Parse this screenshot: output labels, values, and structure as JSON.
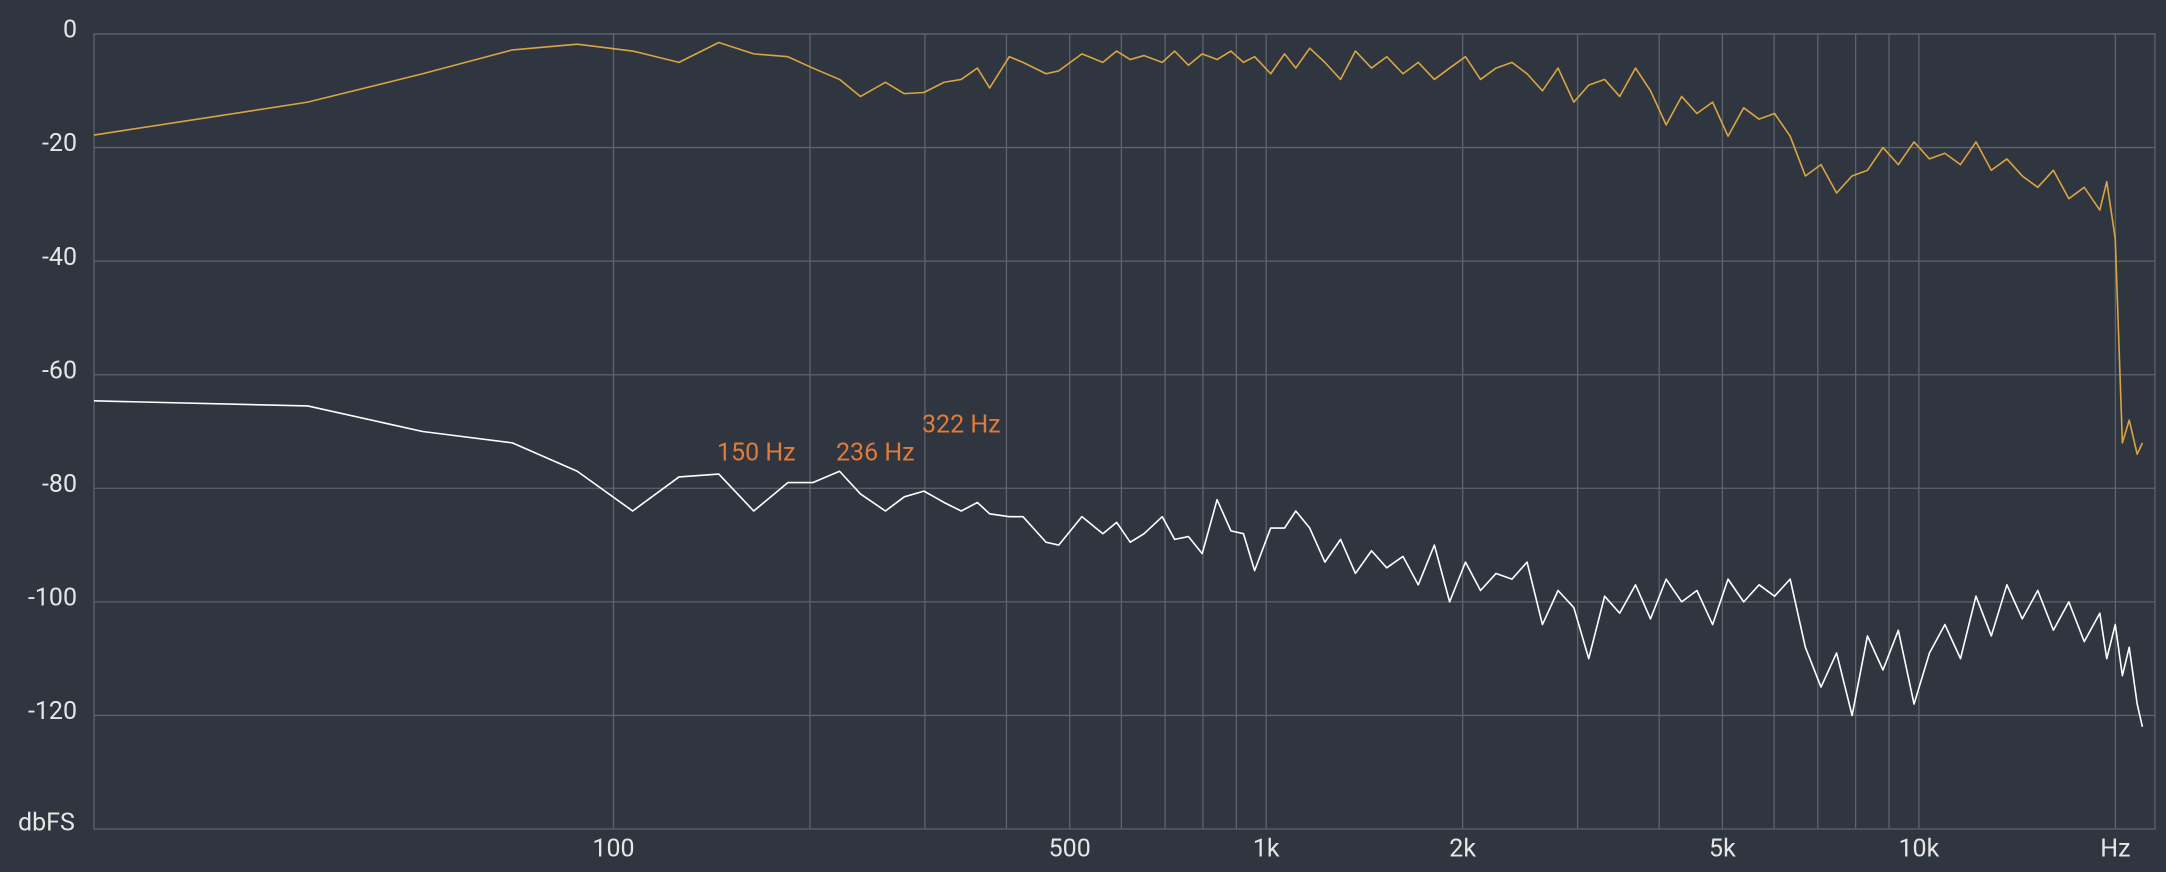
{
  "chart_data": {
    "type": "line",
    "y_label": "dbFS",
    "xscale": "log",
    "xlim": [
      16,
      23000
    ],
    "ylim": [
      -140,
      0
    ],
    "grid": true,
    "yticks": [
      0,
      -20,
      -40,
      -60,
      -80,
      -100,
      -120
    ],
    "xticks": [
      100,
      500,
      {
        "value": 1000,
        "label": "1k"
      },
      {
        "value": 2000,
        "label": "2k"
      },
      {
        "value": 5000,
        "label": "5k"
      },
      {
        "value": 10000,
        "label": "10k"
      },
      {
        "value": 20000,
        "label": "Hz"
      }
    ],
    "xgrid": [
      100,
      200,
      300,
      400,
      500,
      600,
      700,
      800,
      900,
      1000,
      2000,
      3000,
      4000,
      5000,
      6000,
      7000,
      8000,
      9000,
      10000,
      20000
    ],
    "annotations": [
      "150 Hz",
      "236 Hz",
      "322 Hz"
    ],
    "x": [
      16,
      34,
      51,
      70,
      88,
      107,
      126,
      145,
      164,
      185,
      202,
      222,
      239,
      261,
      279,
      299,
      321,
      341,
      361,
      377,
      404,
      424,
      460,
      481,
      522,
      562,
      590,
      619,
      650,
      693,
      724,
      760,
      798,
      841,
      883,
      923,
      960,
      1016,
      1067,
      1110,
      1166,
      1230,
      1300,
      1370,
      1450,
      1530,
      1620,
      1710,
      1810,
      1910,
      2020,
      2130,
      2250,
      2380,
      2510,
      2650,
      2800,
      2960,
      3120,
      3300,
      3480,
      3680,
      3880,
      4100,
      4330,
      4570,
      4830,
      5100,
      5390,
      5690,
      6010,
      6350,
      6700,
      7080,
      7480,
      7900,
      8340,
      8810,
      9300,
      9830,
      10380,
      10960,
      11580,
      12230,
      12910,
      13640,
      14400,
      15210,
      16070,
      16970,
      17920,
      18930,
      19400,
      19990,
      20500,
      21000,
      21600,
      22000
    ],
    "series": [
      {
        "color": "#d9a441",
        "values": [
          -17.8,
          -12,
          -7,
          -2.8,
          -1.8,
          -3,
          -5,
          -1.5,
          -3.5,
          -4,
          -6,
          -8,
          -11,
          -8.5,
          -10.5,
          -10.3,
          -8.5,
          -8,
          -6,
          -9.5,
          -4,
          -5,
          -7,
          -6.5,
          -3.5,
          -5,
          -3,
          -4.5,
          -3.8,
          -5,
          -3,
          -5.5,
          -3.5,
          -4.5,
          -3,
          -5,
          -4,
          -7,
          -3.5,
          -6,
          -2.5,
          -5,
          -8,
          -3,
          -6,
          -4,
          -7,
          -5,
          -8,
          -6,
          -4,
          -8,
          -6,
          -5,
          -7,
          -10,
          -6,
          -12,
          -9,
          -8,
          -11,
          -6,
          -10,
          -16,
          -11,
          -14,
          -12,
          -18,
          -13,
          -15,
          -14,
          -18,
          -25,
          -23,
          -28,
          -25,
          -24,
          -20,
          -23,
          -19,
          -22,
          -21,
          -23,
          -19,
          -24,
          -22,
          -25,
          -27,
          -24,
          -29,
          -27,
          -31,
          -26,
          -36,
          -72,
          -68,
          -74,
          -72
        ]
      },
      {
        "color": "#ffffff",
        "values": [
          -64.6,
          -65.5,
          -70,
          -72,
          -77,
          -84,
          -78,
          -77.5,
          -84,
          -79,
          -79,
          -77,
          -81,
          -84,
          -81.5,
          -80.5,
          -82.5,
          -84,
          -82.5,
          -84.5,
          -85,
          -85,
          -89.5,
          -90,
          -85,
          -88,
          -86,
          -89.5,
          -88,
          -85,
          -89,
          -88.5,
          -91.5,
          -82,
          -87.5,
          -88,
          -94.5,
          -87,
          -87,
          -84,
          -87,
          -93,
          -89,
          -95,
          -91,
          -94,
          -92,
          -97,
          -90,
          -100,
          -93,
          -98,
          -95,
          -96,
          -93,
          -104,
          -98,
          -101,
          -110,
          -99,
          -102,
          -97,
          -103,
          -96,
          -100,
          -98,
          -104,
          -96,
          -100,
          -97,
          -99,
          -96,
          -108,
          -115,
          -109,
          -120,
          -106,
          -112,
          -105,
          -118,
          -109,
          -104,
          -110,
          -99,
          -106,
          -97,
          -103,
          -98,
          -105,
          -100,
          -107,
          -102,
          -110,
          -104,
          -113,
          -108,
          -118,
          -122
        ]
      }
    ]
  }
}
